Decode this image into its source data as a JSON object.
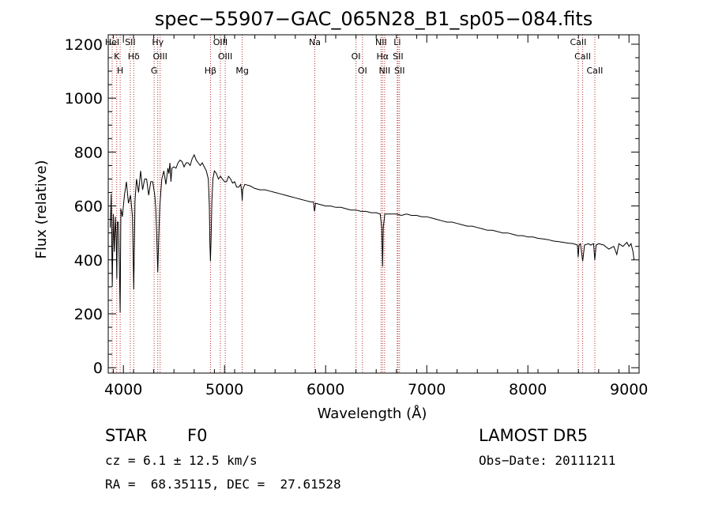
{
  "chart_data": {
    "type": "line",
    "title": "spec−55907−GAC_065N28_B1_sp05−084.fits",
    "xlabel": "Wavelength (Å)",
    "ylabel": "Flux (relative)",
    "xlim": [
      3850,
      9100
    ],
    "ylim": [
      -20,
      1235
    ],
    "x_ticks": [
      4000,
      5000,
      6000,
      7000,
      8000,
      9000
    ],
    "x_tick_labels": [
      "4000",
      "5000",
      "6000",
      "7000",
      "8000",
      "9000"
    ],
    "y_ticks": [
      0,
      200,
      400,
      600,
      800,
      1000,
      1200
    ],
    "y_tick_labels": [
      "0",
      "200",
      "400",
      "600",
      "800",
      "1000",
      "1200"
    ],
    "grid": false,
    "line_color": "#000000",
    "marker_color": "#b03030",
    "series": [
      {
        "values": [
          [
            3870,
            520
          ],
          [
            3880,
            645
          ],
          [
            3890,
            300
          ],
          [
            3900,
            570
          ],
          [
            3910,
            430
          ],
          [
            3920,
            560
          ],
          [
            3930,
            470
          ],
          [
            3935,
            330
          ],
          [
            3940,
            540
          ],
          [
            3950,
            540
          ],
          [
            3960,
            380
          ],
          [
            3968,
            205
          ],
          [
            3975,
            590
          ],
          [
            3990,
            560
          ],
          [
            4010,
            640
          ],
          [
            4030,
            690
          ],
          [
            4050,
            610
          ],
          [
            4070,
            640
          ],
          [
            4090,
            560
          ],
          [
            4102,
            290
          ],
          [
            4115,
            620
          ],
          [
            4130,
            700
          ],
          [
            4150,
            650
          ],
          [
            4170,
            730
          ],
          [
            4190,
            660
          ],
          [
            4210,
            700
          ],
          [
            4230,
            700
          ],
          [
            4250,
            640
          ],
          [
            4270,
            690
          ],
          [
            4290,
            690
          ],
          [
            4310,
            640
          ],
          [
            4320,
            590
          ],
          [
            4330,
            490
          ],
          [
            4340,
            355
          ],
          [
            4350,
            490
          ],
          [
            4360,
            600
          ],
          [
            4380,
            700
          ],
          [
            4400,
            730
          ],
          [
            4420,
            680
          ],
          [
            4440,
            740
          ],
          [
            4450,
            720
          ],
          [
            4460,
            760
          ],
          [
            4470,
            690
          ],
          [
            4480,
            740
          ],
          [
            4500,
            745
          ],
          [
            4520,
            740
          ],
          [
            4540,
            760
          ],
          [
            4560,
            770
          ],
          [
            4580,
            765
          ],
          [
            4600,
            745
          ],
          [
            4620,
            760
          ],
          [
            4640,
            760
          ],
          [
            4660,
            750
          ],
          [
            4680,
            775
          ],
          [
            4700,
            790
          ],
          [
            4720,
            770
          ],
          [
            4740,
            760
          ],
          [
            4760,
            750
          ],
          [
            4780,
            760
          ],
          [
            4800,
            745
          ],
          [
            4820,
            730
          ],
          [
            4840,
            700
          ],
          [
            4850,
            600
          ],
          [
            4855,
            470
          ],
          [
            4861,
            395
          ],
          [
            4867,
            480
          ],
          [
            4875,
            620
          ],
          [
            4885,
            700
          ],
          [
            4900,
            730
          ],
          [
            4920,
            720
          ],
          [
            4940,
            700
          ],
          [
            4960,
            710
          ],
          [
            4980,
            700
          ],
          [
            5000,
            690
          ],
          [
            5020,
            690
          ],
          [
            5040,
            710
          ],
          [
            5060,
            700
          ],
          [
            5080,
            685
          ],
          [
            5100,
            690
          ],
          [
            5120,
            670
          ],
          [
            5140,
            670
          ],
          [
            5160,
            680
          ],
          [
            5170,
            650
          ],
          [
            5175,
            620
          ],
          [
            5180,
            660
          ],
          [
            5200,
            680
          ],
          [
            5250,
            675
          ],
          [
            5300,
            665
          ],
          [
            5350,
            660
          ],
          [
            5400,
            660
          ],
          [
            5450,
            655
          ],
          [
            5500,
            650
          ],
          [
            5550,
            645
          ],
          [
            5600,
            640
          ],
          [
            5650,
            635
          ],
          [
            5700,
            630
          ],
          [
            5750,
            625
          ],
          [
            5800,
            620
          ],
          [
            5850,
            615
          ],
          [
            5880,
            615
          ],
          [
            5890,
            580
          ],
          [
            5896,
            595
          ],
          [
            5900,
            610
          ],
          [
            5950,
            605
          ],
          [
            6000,
            600
          ],
          [
            6050,
            600
          ],
          [
            6100,
            595
          ],
          [
            6150,
            595
          ],
          [
            6200,
            590
          ],
          [
            6250,
            585
          ],
          [
            6300,
            585
          ],
          [
            6350,
            580
          ],
          [
            6400,
            580
          ],
          [
            6450,
            575
          ],
          [
            6500,
            575
          ],
          [
            6540,
            570
          ],
          [
            6555,
            520
          ],
          [
            6563,
            375
          ],
          [
            6570,
            520
          ],
          [
            6585,
            570
          ],
          [
            6620,
            570
          ],
          [
            6650,
            570
          ],
          [
            6700,
            570
          ],
          [
            6750,
            565
          ],
          [
            6800,
            570
          ],
          [
            6850,
            565
          ],
          [
            6900,
            565
          ],
          [
            6950,
            560
          ],
          [
            7000,
            560
          ],
          [
            7050,
            555
          ],
          [
            7100,
            550
          ],
          [
            7150,
            545
          ],
          [
            7200,
            540
          ],
          [
            7250,
            540
          ],
          [
            7300,
            535
          ],
          [
            7350,
            530
          ],
          [
            7400,
            525
          ],
          [
            7450,
            525
          ],
          [
            7500,
            520
          ],
          [
            7550,
            515
          ],
          [
            7600,
            510
          ],
          [
            7650,
            510
          ],
          [
            7700,
            505
          ],
          [
            7750,
            500
          ],
          [
            7800,
            500
          ],
          [
            7850,
            495
          ],
          [
            7900,
            490
          ],
          [
            7950,
            490
          ],
          [
            8000,
            485
          ],
          [
            8050,
            485
          ],
          [
            8100,
            480
          ],
          [
            8150,
            478
          ],
          [
            8200,
            475
          ],
          [
            8250,
            470
          ],
          [
            8300,
            468
          ],
          [
            8350,
            465
          ],
          [
            8400,
            462
          ],
          [
            8450,
            460
          ],
          [
            8490,
            455
          ],
          [
            8498,
            410
          ],
          [
            8506,
            455
          ],
          [
            8520,
            460
          ],
          [
            8542,
            395
          ],
          [
            8560,
            455
          ],
          [
            8600,
            460
          ],
          [
            8620,
            455
          ],
          [
            8650,
            460
          ],
          [
            8662,
            400
          ],
          [
            8675,
            455
          ],
          [
            8700,
            460
          ],
          [
            8750,
            455
          ],
          [
            8800,
            440
          ],
          [
            8850,
            450
          ],
          [
            8880,
            420
          ],
          [
            8900,
            460
          ],
          [
            8940,
            450
          ],
          [
            8980,
            465
          ],
          [
            9000,
            450
          ],
          [
            9020,
            460
          ],
          [
            9040,
            430
          ],
          [
            9050,
            400
          ]
        ]
      }
    ],
    "line_markers": [
      {
        "x": 3889,
        "labels": [
          "HeI"
        ]
      },
      {
        "x": 3934,
        "labels": [
          "K"
        ]
      },
      {
        "x": 3968,
        "labels": [
          "H"
        ]
      },
      {
        "x": 4068,
        "labels": [
          "SII"
        ]
      },
      {
        "x": 4102,
        "labels": [
          "Hδ"
        ]
      },
      {
        "x": 4304,
        "labels": [
          "G"
        ]
      },
      {
        "x": 4340,
        "labels": [
          "Hγ"
        ]
      },
      {
        "x": 4363,
        "labels": [
          "OIII"
        ]
      },
      {
        "x": 4861,
        "labels": [
          "Hβ"
        ]
      },
      {
        "x": 4959,
        "labels": [
          "OIII"
        ]
      },
      {
        "x": 5007,
        "labels": [
          "OIII"
        ]
      },
      {
        "x": 5175,
        "labels": [
          "Mg"
        ]
      },
      {
        "x": 5893,
        "labels": [
          "Na"
        ]
      },
      {
        "x": 6300,
        "labels": [
          "OI"
        ]
      },
      {
        "x": 6364,
        "labels": [
          "OI"
        ]
      },
      {
        "x": 6548,
        "labels": [
          "NII"
        ]
      },
      {
        "x": 6563,
        "labels": [
          "Hα"
        ]
      },
      {
        "x": 6583,
        "labels": [
          "NII"
        ]
      },
      {
        "x": 6708,
        "labels": [
          "Li"
        ]
      },
      {
        "x": 6716,
        "labels": [
          "SII"
        ]
      },
      {
        "x": 6731,
        "labels": [
          "SII"
        ]
      },
      {
        "x": 8498,
        "labels": [
          "CaII"
        ]
      },
      {
        "x": 8542,
        "labels": [
          "CaII"
        ]
      },
      {
        "x": 8662,
        "labels": [
          "CaII"
        ]
      }
    ]
  },
  "info": {
    "class": "STAR",
    "subclass": "F0",
    "survey": "LAMOST DR5",
    "cz": "cz = 6.1 ± 12.5 km/s",
    "obs_date": "Obs−Date: 20111211",
    "radec": "RA =  68.35115, DEC =  27.61528"
  }
}
